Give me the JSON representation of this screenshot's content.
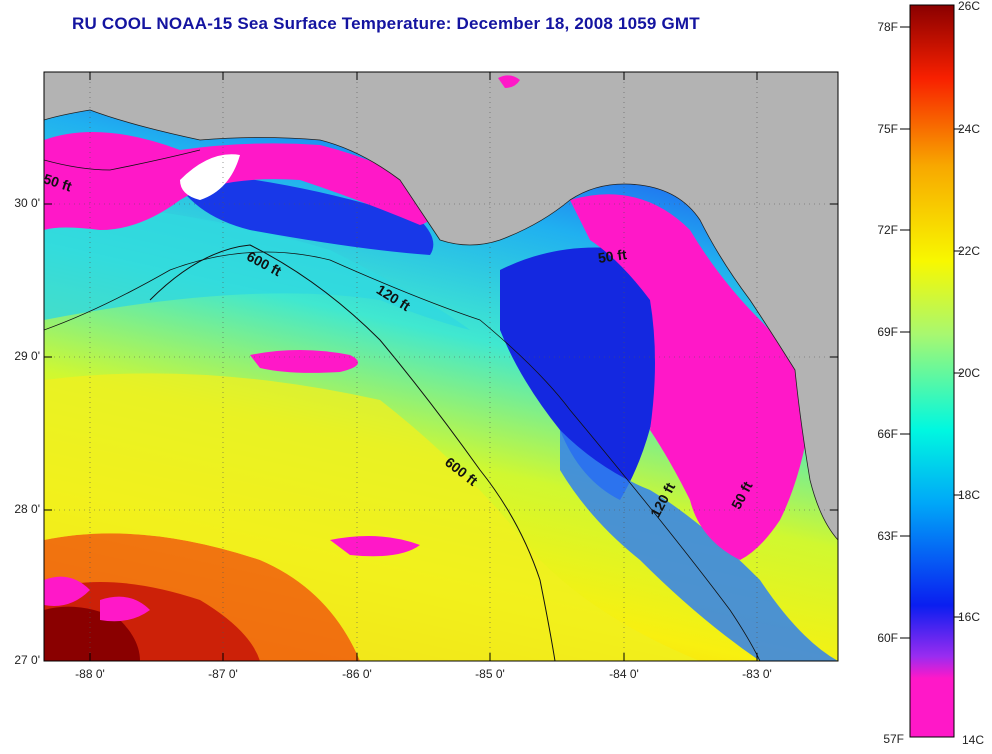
{
  "title": "RU COOL  NOAA-15  Sea Surface Temperature:  December 18, 2008 1059 GMT",
  "colors": {
    "land": "#b3b3b3",
    "frame": "#000000",
    "title": "#1414a0"
  },
  "lat_labels": [
    "30 0'",
    "29 0'",
    "28 0'",
    "27 0'"
  ],
  "lon_labels": [
    "-88 0'",
    "-87 0'",
    "-86 0'",
    "-85 0'",
    "-84 0'",
    "-83 0'"
  ],
  "colorbar": {
    "f_labels": [
      "78F",
      "75F",
      "72F",
      "69F",
      "66F",
      "63F",
      "60F",
      "57F"
    ],
    "c_labels": [
      "26C",
      "24C",
      "22C",
      "20C",
      "18C",
      "16C",
      "14C"
    ],
    "stops": [
      "#ff18c8",
      "#9a2cf0",
      "#0a1ef0",
      "#00a8f8",
      "#00f8e0",
      "#a8f870",
      "#f8f800",
      "#f8a800",
      "#f82000",
      "#8a0000"
    ]
  },
  "contour_labels": [
    "50 ft",
    "600 ft",
    "120 ft",
    "50 ft",
    "600 ft",
    "120 ft",
    "50 ft"
  ],
  "map_legend_items": []
}
